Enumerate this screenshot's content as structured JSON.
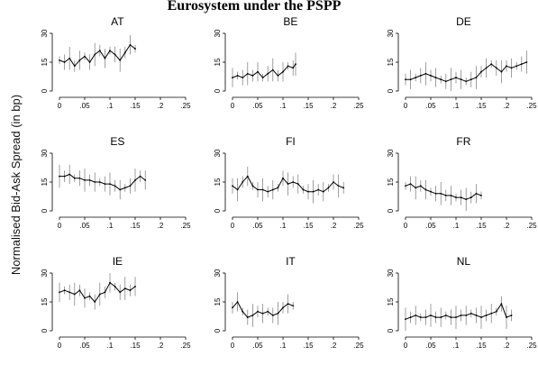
{
  "figure": {
    "title": "Eurosystem under the PSPP",
    "ylabel": "Normalised Bid-Ask Spread (in bp)"
  },
  "chart_data": [
    {
      "type": "line",
      "title": "AT",
      "xlim": [
        0,
        0.25
      ],
      "ylim": [
        0,
        30
      ],
      "xticks": [
        "0",
        ".05",
        ".1",
        ".15",
        ".2",
        ".25"
      ],
      "yticks": [
        "0",
        "15",
        "30"
      ],
      "x": [
        0,
        0.01,
        0.02,
        0.03,
        0.04,
        0.05,
        0.06,
        0.07,
        0.08,
        0.09,
        0.1,
        0.11,
        0.12,
        0.13,
        0.14,
        0.15
      ],
      "y": [
        16,
        15,
        17,
        13,
        16,
        18,
        15,
        19,
        21,
        17,
        21,
        19,
        16,
        20,
        24,
        22
      ]
    },
    {
      "type": "line",
      "title": "BE",
      "xlim": [
        0,
        0.25
      ],
      "ylim": [
        0,
        30
      ],
      "xticks": [
        "0",
        ".05",
        ".1",
        ".15",
        ".2",
        ".25"
      ],
      "yticks": [
        "0",
        "15",
        "30"
      ],
      "x": [
        0,
        0.01,
        0.02,
        0.03,
        0.04,
        0.05,
        0.06,
        0.07,
        0.08,
        0.09,
        0.1,
        0.11,
        0.12,
        0.125
      ],
      "y": [
        7,
        8,
        7,
        9,
        8,
        10,
        7,
        9,
        11,
        8,
        10,
        13,
        12,
        14
      ]
    },
    {
      "type": "line",
      "title": "DE",
      "xlim": [
        0,
        0.25
      ],
      "ylim": [
        0,
        30
      ],
      "xticks": [
        "0",
        ".05",
        ".1",
        ".15",
        ".2",
        ".25"
      ],
      "yticks": [
        "0",
        "15",
        "30"
      ],
      "x": [
        0,
        0.01,
        0.02,
        0.03,
        0.04,
        0.05,
        0.06,
        0.07,
        0.08,
        0.09,
        0.1,
        0.11,
        0.12,
        0.13,
        0.14,
        0.15,
        0.16,
        0.17,
        0.18,
        0.19,
        0.2,
        0.21,
        0.22,
        0.23,
        0.24
      ],
      "y": [
        6,
        6,
        7,
        8,
        9,
        8,
        7,
        6,
        5,
        6,
        7,
        6,
        5,
        6,
        7,
        10,
        12,
        14,
        12,
        10,
        13,
        12,
        13,
        14,
        15
      ]
    },
    {
      "type": "line",
      "title": "ES",
      "xlim": [
        0,
        0.25
      ],
      "ylim": [
        0,
        30
      ],
      "xticks": [
        "0",
        ".05",
        ".1",
        ".15",
        ".2",
        ".25"
      ],
      "yticks": [
        "0",
        "15",
        "30"
      ],
      "x": [
        0,
        0.01,
        0.02,
        0.03,
        0.04,
        0.05,
        0.06,
        0.07,
        0.08,
        0.09,
        0.1,
        0.11,
        0.12,
        0.13,
        0.14,
        0.15,
        0.16,
        0.17
      ],
      "y": [
        18,
        18,
        19,
        17,
        17,
        16,
        16,
        15,
        15,
        14,
        14,
        13,
        11,
        12,
        13,
        16,
        18,
        16
      ]
    },
    {
      "type": "line",
      "title": "FI",
      "xlim": [
        0,
        0.25
      ],
      "ylim": [
        0,
        30
      ],
      "xticks": [
        "0",
        ".05",
        ".1",
        ".15",
        ".2",
        ".25"
      ],
      "yticks": [
        "0",
        "15",
        "30"
      ],
      "x": [
        0,
        0.01,
        0.02,
        0.03,
        0.04,
        0.05,
        0.06,
        0.07,
        0.08,
        0.09,
        0.1,
        0.11,
        0.12,
        0.13,
        0.14,
        0.15,
        0.16,
        0.17,
        0.18,
        0.19,
        0.2,
        0.21,
        0.22
      ],
      "y": [
        13,
        11,
        15,
        18,
        13,
        11,
        11,
        10,
        11,
        12,
        17,
        14,
        15,
        14,
        11,
        10,
        10,
        11,
        10,
        12,
        15,
        13,
        12
      ]
    },
    {
      "type": "line",
      "title": "FR",
      "xlim": [
        0,
        0.25
      ],
      "ylim": [
        0,
        30
      ],
      "xticks": [
        "0",
        ".05",
        ".1",
        ".15",
        ".2",
        ".25"
      ],
      "yticks": [
        "0",
        "15",
        "30"
      ],
      "x": [
        0,
        0.01,
        0.02,
        0.03,
        0.04,
        0.05,
        0.06,
        0.07,
        0.08,
        0.09,
        0.1,
        0.11,
        0.12,
        0.13,
        0.14,
        0.15
      ],
      "y": [
        13,
        14,
        12,
        13,
        11,
        10,
        9,
        9,
        8,
        8,
        7,
        7,
        6,
        7,
        9,
        8
      ]
    },
    {
      "type": "line",
      "title": "IE",
      "xlim": [
        0,
        0.25
      ],
      "ylim": [
        0,
        30
      ],
      "xticks": [
        "0",
        ".05",
        ".1",
        ".15",
        ".2",
        ".25"
      ],
      "yticks": [
        "0",
        "15",
        "30"
      ],
      "x": [
        0,
        0.01,
        0.02,
        0.03,
        0.04,
        0.05,
        0.06,
        0.07,
        0.08,
        0.09,
        0.1,
        0.11,
        0.12,
        0.13,
        0.14,
        0.15
      ],
      "y": [
        20,
        21,
        20,
        19,
        21,
        17,
        18,
        15,
        19,
        20,
        25,
        23,
        20,
        22,
        21,
        23
      ]
    },
    {
      "type": "line",
      "title": "IT",
      "xlim": [
        0,
        0.25
      ],
      "ylim": [
        0,
        30
      ],
      "xticks": [
        "0",
        ".05",
        ".1",
        ".15",
        ".2",
        ".25"
      ],
      "yticks": [
        "0",
        "15",
        "30"
      ],
      "x": [
        0,
        0.01,
        0.02,
        0.03,
        0.04,
        0.05,
        0.06,
        0.07,
        0.08,
        0.09,
        0.1,
        0.11,
        0.12
      ],
      "y": [
        12,
        15,
        10,
        7,
        8,
        10,
        9,
        10,
        8,
        9,
        12,
        14,
        13
      ]
    },
    {
      "type": "line",
      "title": "NL",
      "xlim": [
        0,
        0.25
      ],
      "ylim": [
        0,
        30
      ],
      "xticks": [
        "0",
        ".05",
        ".1",
        ".15",
        ".2",
        ".25"
      ],
      "yticks": [
        "0",
        "15",
        "30"
      ],
      "x": [
        0,
        0.01,
        0.02,
        0.03,
        0.04,
        0.05,
        0.06,
        0.07,
        0.08,
        0.09,
        0.1,
        0.11,
        0.12,
        0.13,
        0.14,
        0.15,
        0.16,
        0.17,
        0.18,
        0.19,
        0.2,
        0.21
      ],
      "y": [
        6,
        7,
        8,
        7,
        7,
        8,
        7,
        7,
        8,
        7,
        7,
        8,
        8,
        9,
        8,
        7,
        8,
        9,
        10,
        14,
        7,
        8
      ]
    }
  ]
}
